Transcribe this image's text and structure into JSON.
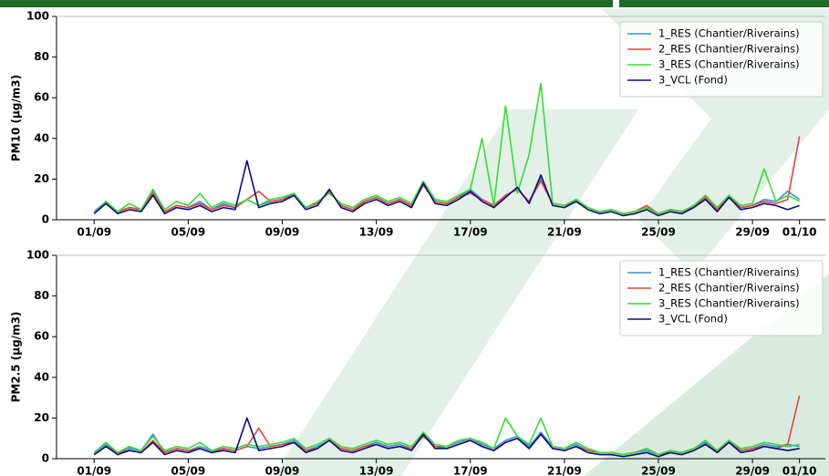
{
  "chart_data": [
    {
      "type": "line",
      "ylabel": "PM10 (µg/m3)",
      "ylim": [
        0,
        100
      ],
      "yticks": [
        0,
        20,
        40,
        60,
        80,
        100
      ],
      "xlim": [
        -1.6,
        31.1
      ],
      "xticks": [
        {
          "value": 0,
          "label": "01/09"
        },
        {
          "value": 4,
          "label": "05/09"
        },
        {
          "value": 8,
          "label": "09/09"
        },
        {
          "value": 12,
          "label": "13/09"
        },
        {
          "value": 16,
          "label": "17/09"
        },
        {
          "value": 20,
          "label": "21/09"
        },
        {
          "value": 24,
          "label": "25/09"
        },
        {
          "value": 28,
          "label": "29/09"
        },
        {
          "value": 30,
          "label": "01/10"
        }
      ],
      "legend": "upper right",
      "x": [
        0,
        0.5,
        1,
        1.5,
        2,
        2.5,
        3,
        3.5,
        4,
        4.5,
        5,
        5.5,
        6,
        6.5,
        7,
        7.5,
        8,
        8.5,
        9,
        9.5,
        10,
        10.5,
        11,
        11.5,
        12,
        12.5,
        13,
        13.5,
        14,
        14.5,
        15,
        15.5,
        16,
        16.5,
        17,
        17.5,
        18,
        18.5,
        19,
        19.5,
        20,
        20.5,
        21,
        21.5,
        22,
        22.5,
        23,
        23.5,
        24,
        24.5,
        25,
        25.5,
        26,
        26.5,
        27,
        27.5,
        28,
        28.5,
        29,
        29.5,
        30
      ],
      "series": [
        {
          "name": "1_RES (Chantier/Riverains)",
          "color": "#3a8fd8",
          "values": [
            4,
            9,
            4,
            6,
            5,
            14,
            4,
            7,
            6,
            9,
            5,
            8,
            6,
            10,
            7,
            9,
            10,
            13,
            6,
            8,
            14,
            7,
            5,
            9,
            11,
            8,
            10,
            7,
            17,
            9,
            8,
            11,
            15,
            10,
            7,
            12,
            15,
            9,
            20,
            8,
            7,
            10,
            6,
            4,
            5,
            3,
            4,
            6,
            3,
            5,
            4,
            7,
            11,
            5,
            12,
            6,
            7,
            10,
            9,
            14,
            10
          ]
        },
        {
          "name": "2_RES (Chantier/Riverains)",
          "color": "#e8433a",
          "values": [
            3,
            8,
            4,
            6,
            5,
            13,
            4,
            7,
            6,
            8,
            5,
            7,
            6,
            10,
            14,
            9,
            10,
            12,
            6,
            8,
            14,
            7,
            5,
            9,
            11,
            8,
            10,
            7,
            17,
            9,
            8,
            11,
            13,
            10,
            7,
            12,
            15,
            9,
            19,
            8,
            7,
            9,
            6,
            4,
            5,
            3,
            4,
            7,
            3,
            5,
            4,
            6,
            11,
            5,
            12,
            6,
            7,
            9,
            8,
            10,
            41
          ]
        },
        {
          "name": "3_RES (Chantier/Riverains)",
          "color": "#33dd33",
          "values": [
            3,
            9,
            4,
            8,
            5,
            15,
            5,
            9,
            7,
            13,
            6,
            9,
            7,
            10,
            7,
            10,
            11,
            13,
            6,
            9,
            13,
            8,
            6,
            10,
            12,
            9,
            11,
            8,
            19,
            10,
            9,
            12,
            15,
            40,
            7,
            56,
            13,
            32,
            67,
            8,
            7,
            10,
            6,
            4,
            5,
            3,
            4,
            6,
            3,
            5,
            4,
            7,
            12,
            6,
            12,
            7,
            8,
            25,
            9,
            12,
            9
          ]
        },
        {
          "name": "3_VCL (Fond)",
          "color": "#0b0b80",
          "values": [
            3,
            8,
            3,
            5,
            4,
            12,
            3,
            6,
            5,
            7,
            4,
            6,
            5,
            29,
            6,
            8,
            9,
            12,
            5,
            7,
            15,
            6,
            4,
            8,
            10,
            7,
            9,
            6,
            18,
            8,
            7,
            10,
            14,
            9,
            6,
            11,
            16,
            8,
            22,
            7,
            6,
            9,
            5,
            3,
            4,
            2,
            3,
            5,
            2,
            4,
            3,
            6,
            10,
            4,
            11,
            5,
            6,
            8,
            7,
            5,
            7
          ]
        }
      ]
    },
    {
      "type": "line",
      "ylabel": "PM2.5 (µg/m3)",
      "ylim": [
        0,
        100
      ],
      "yticks": [
        0,
        20,
        40,
        60,
        80,
        100
      ],
      "xlim": [
        -1.6,
        31.1
      ],
      "xticks": [
        {
          "value": 0,
          "label": "01/09"
        },
        {
          "value": 4,
          "label": "05/09"
        },
        {
          "value": 8,
          "label": "09/09"
        },
        {
          "value": 12,
          "label": "13/09"
        },
        {
          "value": 16,
          "label": "17/09"
        },
        {
          "value": 20,
          "label": "21/09"
        },
        {
          "value": 24,
          "label": "25/09"
        },
        {
          "value": 28,
          "label": "29/09"
        },
        {
          "value": 30,
          "label": "01/10"
        }
      ],
      "legend": "upper right",
      "x": [
        0,
        0.5,
        1,
        1.5,
        2,
        2.5,
        3,
        3.5,
        4,
        4.5,
        5,
        5.5,
        6,
        6.5,
        7,
        7.5,
        8,
        8.5,
        9,
        9.5,
        10,
        10.5,
        11,
        11.5,
        12,
        12.5,
        13,
        13.5,
        14,
        14.5,
        15,
        15.5,
        16,
        16.5,
        17,
        17.5,
        18,
        18.5,
        19,
        19.5,
        20,
        20.5,
        21,
        21.5,
        22,
        22.5,
        23,
        23.5,
        24,
        24.5,
        25,
        25.5,
        26,
        26.5,
        27,
        27.5,
        28,
        28.5,
        29,
        29.5,
        30
      ],
      "series": [
        {
          "name": "1_RES (Chantier/Riverains)",
          "color": "#3a8fd8",
          "values": [
            3,
            7,
            3,
            5,
            4,
            12,
            3,
            5,
            4,
            6,
            4,
            5,
            4,
            6,
            5,
            6,
            7,
            9,
            4,
            6,
            9,
            5,
            4,
            6,
            8,
            6,
            7,
            5,
            12,
            6,
            6,
            8,
            10,
            7,
            5,
            9,
            11,
            6,
            13,
            6,
            5,
            7,
            4,
            3,
            3,
            2,
            3,
            4,
            2,
            4,
            3,
            5,
            8,
            4,
            9,
            4,
            5,
            7,
            6,
            7,
            6
          ]
        },
        {
          "name": "2_RES (Chantier/Riverains)",
          "color": "#e8433a",
          "values": [
            2,
            6,
            3,
            4,
            3,
            9,
            3,
            5,
            4,
            5,
            3,
            5,
            4,
            6,
            15,
            6,
            7,
            8,
            4,
            5,
            9,
            5,
            4,
            6,
            7,
            5,
            6,
            5,
            11,
            6,
            5,
            7,
            9,
            6,
            4,
            8,
            10,
            5,
            12,
            5,
            4,
            6,
            4,
            3,
            3,
            2,
            3,
            5,
            2,
            3,
            2,
            4,
            7,
            4,
            8,
            4,
            5,
            6,
            5,
            7,
            31
          ]
        },
        {
          "name": "3_RES (Chantier/Riverains)",
          "color": "#33dd33",
          "values": [
            3,
            8,
            3,
            6,
            4,
            11,
            4,
            6,
            5,
            8,
            4,
            6,
            5,
            7,
            6,
            7,
            8,
            10,
            5,
            7,
            10,
            6,
            5,
            7,
            9,
            7,
            8,
            6,
            13,
            7,
            6,
            9,
            10,
            8,
            5,
            20,
            11,
            7,
            20,
            6,
            5,
            8,
            5,
            3,
            3,
            2,
            3,
            5,
            2,
            4,
            3,
            5,
            9,
            4,
            9,
            5,
            6,
            8,
            7,
            6,
            7
          ]
        },
        {
          "name": "3_VCL (Fond)",
          "color": "#0b0b80",
          "values": [
            2,
            6,
            2,
            4,
            3,
            8,
            2,
            4,
            3,
            5,
            3,
            4,
            3,
            20,
            4,
            5,
            6,
            8,
            3,
            5,
            9,
            4,
            3,
            5,
            7,
            5,
            6,
            4,
            12,
            5,
            5,
            7,
            9,
            6,
            4,
            8,
            10,
            5,
            12,
            5,
            4,
            6,
            3,
            2,
            2,
            1,
            2,
            3,
            1,
            3,
            2,
            4,
            7,
            3,
            8,
            3,
            4,
            6,
            5,
            4,
            5
          ]
        }
      ]
    }
  ]
}
